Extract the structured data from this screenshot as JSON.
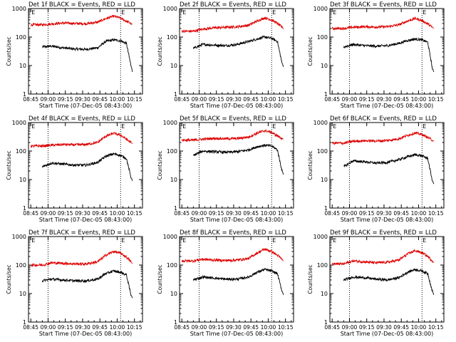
{
  "figure": {
    "background": "#ffffff",
    "events_color": "#000000",
    "lld_color": "#dd0000",
    "xlabel": "Start Time (07-Dec-05 08:43:00)",
    "ylabel": "Counts/sec",
    "x_ticks": [
      "08:45",
      "09:00",
      "09:15",
      "09:30",
      "09:45",
      "10:00",
      "10:15"
    ],
    "y_ticks": [
      "1",
      "10",
      "100",
      "1000"
    ],
    "flag_label": "E"
  },
  "chart_data": [
    {
      "type": "line",
      "title": "Det 1f BLACK = Events, RED = LLD",
      "xlabel": "Start Time (07-Dec-05 08:43:00)",
      "ylabel": "Counts/sec",
      "yscale": "log",
      "ylim": [
        1,
        1000
      ],
      "x_unit": "minutes after 08:43",
      "x": [
        12,
        20,
        30,
        40,
        50,
        60,
        67,
        74,
        80,
        85,
        89,
        91
      ],
      "series": [
        {
          "name": "Events",
          "values": [
            45,
            48,
            42,
            38,
            37,
            42,
            70,
            80,
            74,
            60,
            10,
            6
          ]
        },
        {
          "name": "LLD",
          "values": [
            270,
            290,
            310,
            300,
            295,
            330,
            440,
            540,
            460,
            360,
            300,
            280
          ]
        }
      ]
    },
    {
      "type": "line",
      "title": "Det 2f BLACK = Events, RED = LLD",
      "xlabel": "Start Time (07-Dec-05 08:43:00)",
      "ylabel": "Counts/sec",
      "yscale": "log",
      "ylim": [
        1,
        1000
      ],
      "x_unit": "minutes after 08:43",
      "x": [
        12,
        20,
        30,
        40,
        50,
        60,
        67,
        74,
        80,
        85,
        89,
        91
      ],
      "series": [
        {
          "name": "Events",
          "values": [
            40,
            55,
            52,
            50,
            55,
            70,
            85,
            100,
            90,
            70,
            12,
            9
          ]
        },
        {
          "name": "LLD",
          "values": [
            160,
            190,
            210,
            220,
            230,
            260,
            360,
            470,
            400,
            300,
            220,
            190
          ]
        }
      ]
    },
    {
      "type": "line",
      "title": "Det 3f BLACK = Events, RED = LLD",
      "xlabel": "Start Time (07-Dec-05 08:43:00)",
      "ylabel": "Counts/sec",
      "yscale": "log",
      "ylim": [
        1,
        1000
      ],
      "x_unit": "minutes after 08:43",
      "x": [
        12,
        20,
        30,
        40,
        50,
        60,
        67,
        74,
        80,
        85,
        89,
        91
      ],
      "series": [
        {
          "name": "Events",
          "values": [
            45,
            55,
            50,
            48,
            50,
            60,
            75,
            85,
            80,
            65,
            8,
            6
          ]
        },
        {
          "name": "LLD",
          "values": [
            200,
            220,
            230,
            225,
            230,
            270,
            360,
            450,
            380,
            290,
            220,
            200
          ]
        }
      ]
    },
    {
      "type": "line",
      "title": "Det 4f BLACK = Events, RED = LLD",
      "xlabel": "Start Time (07-Dec-05 08:43:00)",
      "ylabel": "Counts/sec",
      "yscale": "log",
      "ylim": [
        1,
        1000
      ],
      "x_unit": "minutes after 08:43",
      "x": [
        12,
        20,
        30,
        40,
        50,
        60,
        67,
        74,
        80,
        85,
        89,
        91
      ],
      "series": [
        {
          "name": "Events",
          "values": [
            28,
            38,
            35,
            32,
            32,
            40,
            65,
            80,
            70,
            55,
            12,
            9
          ]
        },
        {
          "name": "LLD",
          "values": [
            150,
            160,
            170,
            165,
            170,
            200,
            330,
            420,
            360,
            260,
            200,
            180
          ]
        }
      ]
    },
    {
      "type": "line",
      "title": "Det 5f BLACK = Events, RED = LLD",
      "xlabel": "Start Time (07-Dec-05 08:43:00)",
      "ylabel": "Counts/sec",
      "yscale": "log",
      "ylim": [
        1,
        1000
      ],
      "x_unit": "minutes after 08:43",
      "x": [
        12,
        20,
        30,
        40,
        50,
        60,
        67,
        74,
        80,
        85,
        89,
        91
      ],
      "series": [
        {
          "name": "Events",
          "values": [
            70,
            100,
            95,
            90,
            95,
            110,
            140,
            160,
            150,
            110,
            20,
            15
          ]
        },
        {
          "name": "LLD",
          "values": [
            240,
            260,
            280,
            270,
            275,
            310,
            420,
            520,
            450,
            340,
            280,
            260
          ]
        }
      ]
    },
    {
      "type": "line",
      "title": "Det 6f BLACK = Events, RED = LLD",
      "xlabel": "Start Time (07-Dec-05 08:43:00)",
      "ylabel": "Counts/sec",
      "yscale": "log",
      "ylim": [
        1,
        1000
      ],
      "x_unit": "minutes after 08:43",
      "x": [
        12,
        20,
        30,
        40,
        50,
        60,
        67,
        74,
        80,
        85,
        89,
        91
      ],
      "series": [
        {
          "name": "Events",
          "values": [
            28,
            45,
            42,
            38,
            40,
            50,
            62,
            75,
            68,
            55,
            9,
            7
          ]
        },
        {
          "name": "LLD",
          "values": [
            190,
            220,
            230,
            225,
            235,
            270,
            350,
            430,
            380,
            300,
            240,
            220
          ]
        }
      ]
    },
    {
      "type": "line",
      "title": "Det 7f BLACK = Events, RED = LLD",
      "xlabel": "Start Time (07-Dec-05 08:43:00)",
      "ylabel": "Counts/sec",
      "yscale": "log",
      "ylim": [
        1,
        1000
      ],
      "x_unit": "minutes after 08:43",
      "x": [
        12,
        20,
        30,
        40,
        50,
        60,
        67,
        74,
        80,
        85,
        89,
        91
      ],
      "series": [
        {
          "name": "Events",
          "values": [
            28,
            32,
            30,
            28,
            28,
            32,
            50,
            62,
            55,
            45,
            9,
            7
          ]
        },
        {
          "name": "LLD",
          "values": [
            100,
            120,
            115,
            110,
            110,
            130,
            220,
            300,
            260,
            190,
            130,
            110
          ]
        }
      ]
    },
    {
      "type": "line",
      "title": "Det 8f BLACK = Events, RED = LLD",
      "xlabel": "Start Time (07-Dec-05 08:43:00)",
      "ylabel": "Counts/sec",
      "yscale": "log",
      "ylim": [
        1,
        1000
      ],
      "x_unit": "minutes after 08:43",
      "x": [
        12,
        20,
        30,
        40,
        50,
        60,
        67,
        74,
        80,
        85,
        89,
        91
      ],
      "series": [
        {
          "name": "Events",
          "values": [
            30,
            38,
            35,
            32,
            32,
            38,
            55,
            70,
            62,
            50,
            12,
            9
          ]
        },
        {
          "name": "LLD",
          "values": [
            140,
            160,
            150,
            145,
            150,
            170,
            260,
            360,
            300,
            220,
            160,
            140
          ]
        }
      ]
    },
    {
      "type": "line",
      "title": "Det 9f BLACK = Events, RED = LLD",
      "xlabel": "Start Time (07-Dec-05 08:43:00)",
      "ylabel": "Counts/sec",
      "yscale": "log",
      "ylim": [
        1,
        1000
      ],
      "x_unit": "minutes after 08:43",
      "x": [
        12,
        20,
        30,
        40,
        50,
        60,
        67,
        74,
        80,
        85,
        89,
        91
      ],
      "series": [
        {
          "name": "Events",
          "values": [
            30,
            38,
            36,
            32,
            30,
            36,
            55,
            70,
            62,
            50,
            12,
            9
          ]
        },
        {
          "name": "LLD",
          "values": [
            110,
            140,
            130,
            120,
            125,
            150,
            240,
            320,
            270,
            200,
            140,
            120
          ]
        }
      ]
    }
  ]
}
